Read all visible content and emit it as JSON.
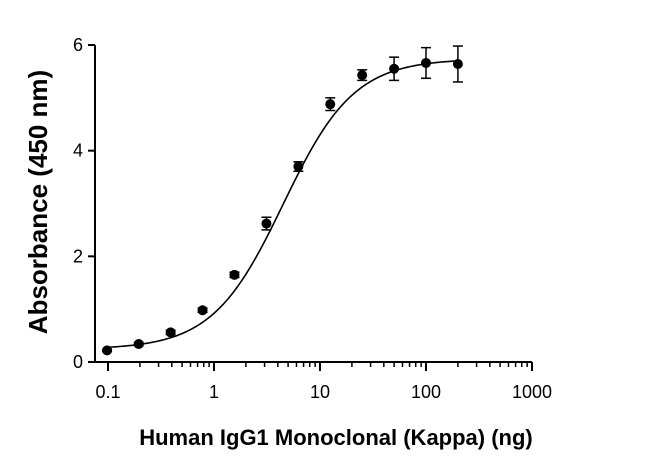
{
  "chart_data": {
    "type": "scatter",
    "xlabel": "Human IgG1 Monoclonal (Kappa) (ng)",
    "ylabel": "Absorbance (450 nm)",
    "x_scale": "log",
    "xlim": [
      0.05,
      1000
    ],
    "ylim": [
      0,
      6
    ],
    "x_ticks": [
      0.1,
      1,
      10,
      100,
      1000
    ],
    "x_tick_labels": [
      "0.1",
      "1",
      "10",
      "100",
      "1000"
    ],
    "y_ticks": [
      0,
      2,
      4,
      6
    ],
    "y_tick_labels": [
      "0",
      "2",
      "4",
      "6"
    ],
    "grid": false,
    "legend": "none",
    "point_color": "#000000",
    "series": [
      {
        "x": [
          0.098,
          0.195,
          0.39,
          0.78,
          1.56,
          3.125,
          6.25,
          12.5,
          25,
          50,
          100,
          200
        ],
        "y": [
          0.22,
          0.34,
          0.56,
          0.98,
          1.65,
          2.62,
          3.7,
          4.88,
          5.43,
          5.55,
          5.66,
          5.64
        ],
        "error": [
          0.02,
          0.03,
          0.04,
          0.04,
          0.05,
          0.12,
          0.09,
          0.12,
          0.1,
          0.22,
          0.29,
          0.34
        ]
      }
    ],
    "fit_curve": {
      "model": "4PL",
      "bottom": 0.24,
      "top": 5.74,
      "ec50": 4.5,
      "hill": 1.3
    }
  }
}
